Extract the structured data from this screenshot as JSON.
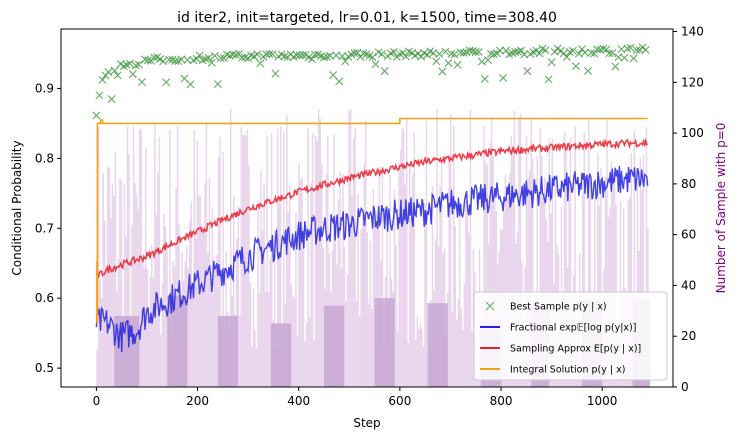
{
  "chart_data": {
    "type": "line",
    "title": "id iter2, init=targeted, lr=0.01, k=1500, time=308.40",
    "xlabel": "Step",
    "ylabel": "Conditional Probability",
    "y2label": "Number of Sample with p=0",
    "xlim": [
      -70,
      1140
    ],
    "ylim": [
      0.473,
      0.985
    ],
    "y2lim": [
      0,
      141
    ],
    "xticks": [
      0,
      200,
      400,
      600,
      800,
      1000
    ],
    "yticks": [
      0.5,
      0.6,
      0.7,
      0.8,
      0.9
    ],
    "y2ticks": [
      0,
      20,
      40,
      60,
      80,
      100,
      120,
      140
    ],
    "legend_position": "lower right",
    "grid": false,
    "colors": {
      "best_sample": "#2e8b2e",
      "fractional": "#2222dd",
      "sampling": "#e8202a",
      "integral": "#f5a21b",
      "bars": "#cfa5d6",
      "right_axis_label": "#800080"
    },
    "series": [
      {
        "name": "Best Sample $p(y \\mid x)$",
        "style": "x-markers",
        "x": [
          0,
          10,
          20,
          40,
          60,
          80,
          100,
          150,
          200,
          250,
          300,
          400,
          500,
          600,
          700,
          800,
          900,
          1000,
          1090
        ],
        "y": [
          0.862,
          0.905,
          0.925,
          0.93,
          0.935,
          0.935,
          0.94,
          0.942,
          0.944,
          0.945,
          0.946,
          0.947,
          0.948,
          0.949,
          0.95,
          0.952,
          0.953,
          0.954,
          0.956
        ]
      },
      {
        "name": "Fractional $\\exp\\mathbb{E}[\\log p(y|x)]$",
        "style": "line",
        "x": [
          0,
          20,
          50,
          80,
          100,
          150,
          200,
          250,
          300,
          350,
          400,
          450,
          500,
          550,
          600,
          650,
          700,
          750,
          800,
          850,
          900,
          950,
          1000,
          1050,
          1090
        ],
        "y": [
          0.565,
          0.565,
          0.545,
          0.555,
          0.58,
          0.6,
          0.62,
          0.64,
          0.66,
          0.675,
          0.69,
          0.7,
          0.705,
          0.715,
          0.72,
          0.725,
          0.735,
          0.74,
          0.745,
          0.75,
          0.755,
          0.76,
          0.765,
          0.77,
          0.77
        ]
      },
      {
        "name": "Sampling Approx $E[p(y \\mid x)]$",
        "style": "line",
        "x": [
          0,
          20,
          50,
          100,
          150,
          200,
          250,
          300,
          350,
          400,
          450,
          500,
          550,
          600,
          650,
          700,
          750,
          800,
          850,
          900,
          950,
          1000,
          1050,
          1090
        ],
        "y": [
          0.63,
          0.64,
          0.648,
          0.66,
          0.678,
          0.695,
          0.712,
          0.728,
          0.74,
          0.752,
          0.762,
          0.772,
          0.78,
          0.788,
          0.795,
          0.8,
          0.805,
          0.81,
          0.813,
          0.815,
          0.818,
          0.82,
          0.822,
          0.822
        ]
      },
      {
        "name": "Integral Solution $p(y \\mid x)$",
        "style": "step",
        "x": [
          0,
          1,
          2,
          8,
          12,
          20,
          590,
          600,
          1090
        ],
        "y": [
          0.652,
          0.566,
          0.85,
          0.855,
          0.85,
          0.85,
          0.85,
          0.857,
          0.857
        ]
      }
    ],
    "bars": {
      "name": "Number of Sample with p=0",
      "axis": "right",
      "bands": [
        {
          "x0": 35,
          "x1": 85,
          "level": 28
        },
        {
          "x0": 140,
          "x1": 180,
          "level": 36
        },
        {
          "x0": 240,
          "x1": 280,
          "level": 28
        },
        {
          "x0": 345,
          "x1": 385,
          "level": 25
        },
        {
          "x0": 450,
          "x1": 490,
          "level": 32
        },
        {
          "x0": 550,
          "x1": 590,
          "level": 35
        },
        {
          "x0": 655,
          "x1": 695,
          "level": 33
        },
        {
          "x0": 760,
          "x1": 800,
          "level": 26
        },
        {
          "x0": 860,
          "x1": 895,
          "level": 32
        },
        {
          "x0": 960,
          "x1": 1000,
          "level": 34
        },
        {
          "x0": 1060,
          "x1": 1095,
          "level": 34
        }
      ]
    }
  }
}
